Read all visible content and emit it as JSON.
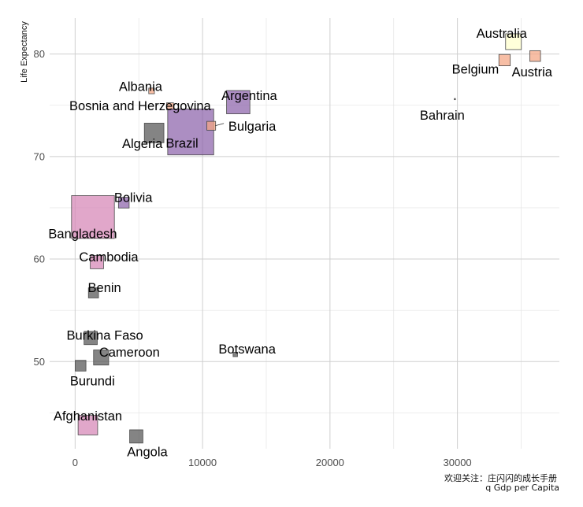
{
  "chart_data": {
    "type": "scatter",
    "title": "",
    "xlabel": "q  Gdp per Capita",
    "ylabel": "Life Expectancy",
    "xlim": [
      -2000,
      38000
    ],
    "ylim": [
      41.5,
      83.5
    ],
    "x_ticks": [
      0,
      10000,
      20000,
      30000
    ],
    "x_minor": [
      5000,
      15000,
      25000,
      35000
    ],
    "y_ticks": [
      50,
      60,
      70,
      80
    ],
    "y_minor": [
      45,
      55,
      65,
      75
    ],
    "grid": true,
    "legend": "none",
    "caption": "欢迎关注：庄闪闪的成长手册",
    "points": [
      {
        "country": "Afghanistan",
        "gdp": 1000,
        "lifeExp": 43.8,
        "size": 1.55,
        "color": "#d585b6"
      },
      {
        "country": "Albania",
        "gdp": 6000,
        "lifeExp": 76.4,
        "size": 0.45,
        "color": "#f4a582"
      },
      {
        "country": "Algeria",
        "gdp": 6200,
        "lifeExp": 72.3,
        "size": 1.55,
        "color": "#555555"
      },
      {
        "country": "Angola",
        "gdp": 4800,
        "lifeExp": 42.7,
        "size": 1.05,
        "color": "#555555"
      },
      {
        "country": "Argentina",
        "gdp": 12800,
        "lifeExp": 75.3,
        "size": 1.85,
        "color": "#8c62aa"
      },
      {
        "country": "Australia",
        "gdp": 34400,
        "lifeExp": 81.2,
        "size": 1.25,
        "color": "#ffffcc"
      },
      {
        "country": "Austria",
        "gdp": 36100,
        "lifeExp": 79.8,
        "size": 0.85,
        "color": "#f4a582"
      },
      {
        "country": "Bahrain",
        "gdp": 29800,
        "lifeExp": 75.6,
        "size": 0.07,
        "color": "#555555"
      },
      {
        "country": "Bangladesh",
        "gdp": 1400,
        "lifeExp": 64.1,
        "size": 3.4,
        "color": "#d585b6"
      },
      {
        "country": "Belgium",
        "gdp": 33700,
        "lifeExp": 79.4,
        "size": 0.9,
        "color": "#f4a582"
      },
      {
        "country": "Benin",
        "gdp": 1440,
        "lifeExp": 56.7,
        "size": 0.8,
        "color": "#555555"
      },
      {
        "country": "Bolivia",
        "gdp": 3820,
        "lifeExp": 65.5,
        "size": 0.85,
        "color": "#8c62aa"
      },
      {
        "country": "Bosnia and Herzegovina",
        "gdp": 7450,
        "lifeExp": 74.9,
        "size": 0.55,
        "color": "#f4a582"
      },
      {
        "country": "Botswana",
        "gdp": 12570,
        "lifeExp": 50.7,
        "size": 0.35,
        "color": "#555555"
      },
      {
        "country": "Brazil",
        "gdp": 9070,
        "lifeExp": 72.4,
        "size": 3.65,
        "color": "#8c62aa"
      },
      {
        "country": "Bulgaria",
        "gdp": 10680,
        "lifeExp": 73.0,
        "size": 0.7,
        "color": "#f4a582"
      },
      {
        "country": "Burkina Faso",
        "gdp": 1220,
        "lifeExp": 52.3,
        "size": 1.05,
        "color": "#555555"
      },
      {
        "country": "Burundi",
        "gdp": 430,
        "lifeExp": 49.6,
        "size": 0.85,
        "color": "#555555"
      },
      {
        "country": "Cambodia",
        "gdp": 1710,
        "lifeExp": 59.7,
        "size": 1.05,
        "color": "#d585b6"
      },
      {
        "country": "Cameroon",
        "gdp": 2040,
        "lifeExp": 50.4,
        "size": 1.2,
        "color": "#555555"
      }
    ]
  }
}
